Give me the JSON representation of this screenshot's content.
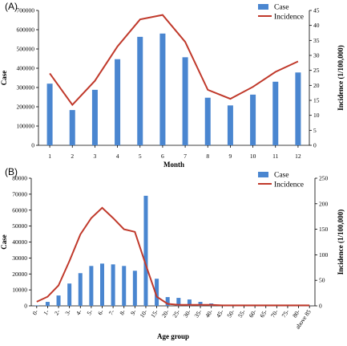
{
  "colors": {
    "case": "#4a86d0",
    "incidence": "#c0392b",
    "axis": "#000000"
  },
  "chart_data": [
    {
      "type": "bar",
      "panel_label": "(A)",
      "xlabel": "Month",
      "ylabel": "Case",
      "y2label": "Incidence (1/100,000)",
      "categories": [
        "1",
        "2",
        "3",
        "4",
        "5",
        "6",
        "7",
        "8",
        "9",
        "10",
        "11",
        "12"
      ],
      "ylim": [
        0,
        700000
      ],
      "yticks": [
        "0",
        "100000",
        "200000",
        "300000",
        "400000",
        "500000",
        "600000",
        "700000"
      ],
      "y2lim": [
        0,
        45
      ],
      "y2ticks": [
        "0",
        "5",
        "10",
        "15",
        "20",
        "25",
        "30",
        "35",
        "40",
        "45"
      ],
      "legend": [
        "Case",
        "Incidence"
      ],
      "legend_position": "top-right",
      "series": [
        {
          "name": "Case",
          "type": "bar",
          "axis": "left",
          "values": [
            320000,
            183000,
            288000,
            447000,
            563000,
            580000,
            457000,
            247000,
            207000,
            263000,
            330000,
            378000
          ]
        },
        {
          "name": "Incidence",
          "type": "line",
          "axis": "right",
          "values": [
            24,
            13.5,
            21.5,
            33,
            42,
            43.5,
            34.5,
            18.5,
            15.5,
            19.5,
            24.5,
            28
          ]
        }
      ]
    },
    {
      "type": "bar",
      "panel_label": "(B)",
      "xlabel": "Age group",
      "ylabel": "Case",
      "y2label": "Incidence (1/100,000)",
      "categories": [
        "0-",
        "1-",
        "2-",
        "3-",
        "4-",
        "5-",
        "6-",
        "7-",
        "8-",
        "9-",
        "10-",
        "15-",
        "20-",
        "25-",
        "30-",
        "35-",
        "40-",
        "45-",
        "50-",
        "55-",
        "60-",
        "65-",
        "70-",
        "75-",
        "80-",
        "above 85"
      ],
      "ylim": [
        0,
        80000
      ],
      "yticks": [
        "0",
        "10000",
        "20000",
        "30000",
        "40000",
        "50000",
        "60000",
        "70000",
        "80000"
      ],
      "y2lim": [
        0,
        250
      ],
      "y2ticks": [
        "0",
        "50",
        "100",
        "150",
        "200",
        "250"
      ],
      "legend": [
        "Case",
        "Incidence"
      ],
      "legend_position": "top-right",
      "series": [
        {
          "name": "Case",
          "type": "bar",
          "axis": "left",
          "values": [
            300,
            2500,
            6500,
            14000,
            20500,
            25000,
            26500,
            26000,
            25000,
            22000,
            69000,
            17000,
            5500,
            5000,
            4000,
            2500,
            1500,
            500,
            300,
            200,
            150,
            100,
            100,
            100,
            50,
            50
          ]
        },
        {
          "name": "Incidence",
          "type": "line",
          "axis": "right",
          "values": [
            8,
            18,
            40,
            88,
            140,
            172,
            192,
            172,
            150,
            145,
            80,
            18,
            4,
            2,
            2,
            2,
            2,
            1,
            1,
            1,
            1,
            1,
            1,
            1,
            1,
            1
          ]
        }
      ]
    }
  ]
}
